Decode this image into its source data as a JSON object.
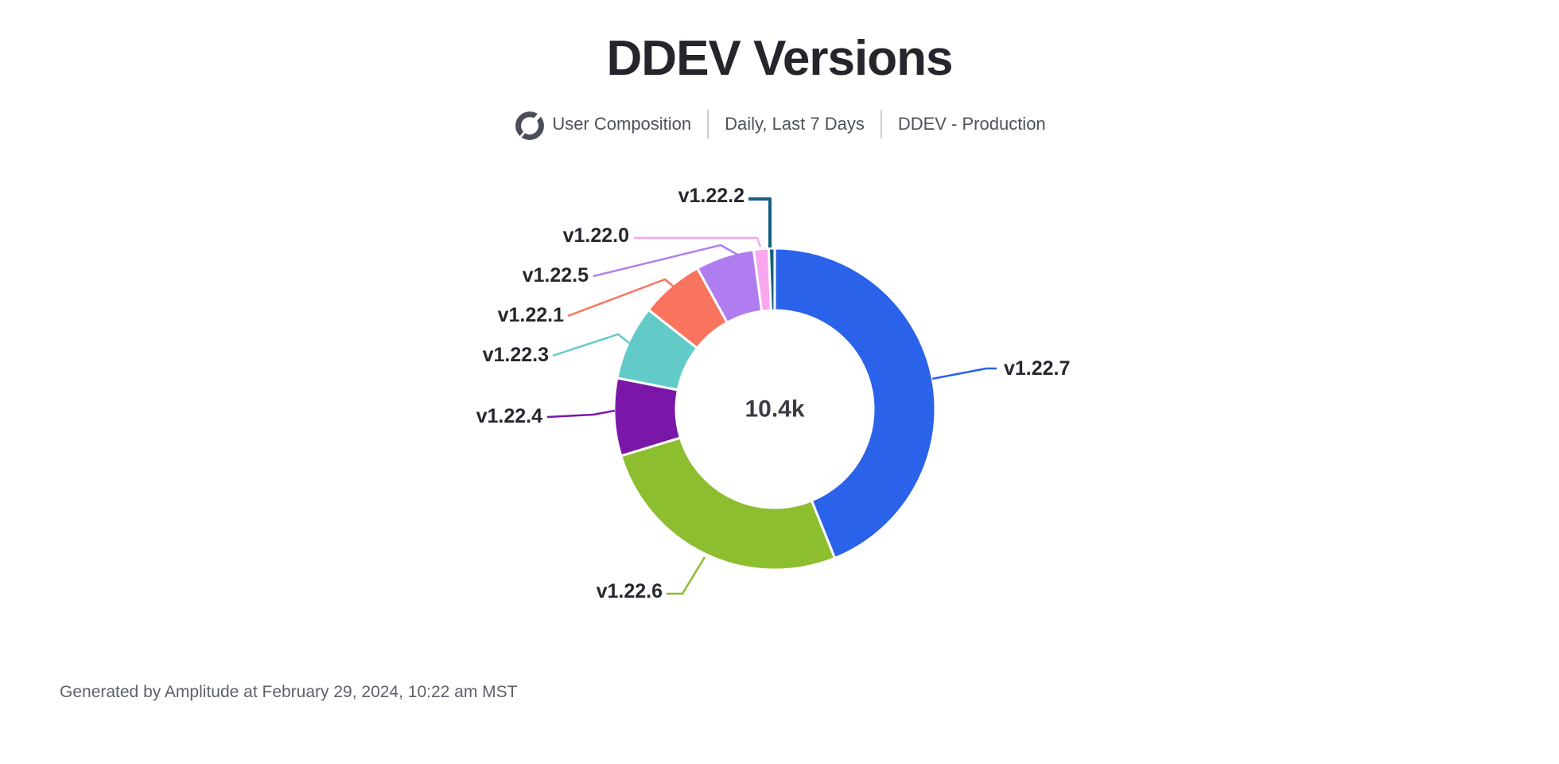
{
  "title": "DDEV Versions",
  "subtitle": {
    "icon": "donut-chart-icon",
    "metric": "User Composition",
    "range": "Daily, Last 7 Days",
    "source": "DDEV - Production"
  },
  "footer": "Generated by Amplitude at February 29, 2024, 10:22 am MST",
  "chart_data": {
    "type": "pie",
    "subtype": "donut",
    "title": "DDEV Versions",
    "center_total_label": "10.4k",
    "legend_position": "outside labels with leader lines",
    "values_estimated_from_arc_angles": true,
    "segments": [
      {
        "label": "v1.22.7",
        "share_pct": 43.9,
        "color": "#2a62e9"
      },
      {
        "label": "v1.22.6",
        "share_pct": 26.4,
        "color": "#8cbe2f"
      },
      {
        "label": "v1.22.4",
        "share_pct": 7.8,
        "color": "#7b17a8"
      },
      {
        "label": "v1.22.3",
        "share_pct": 7.5,
        "color": "#62cbc8"
      },
      {
        "label": "v1.22.1",
        "share_pct": 6.4,
        "color": "#f9745e"
      },
      {
        "label": "v1.22.5",
        "share_pct": 5.9,
        "color": "#af7df0"
      },
      {
        "label": "v1.22.0",
        "share_pct": 1.5,
        "color": "#f8a6ee"
      },
      {
        "label": "v1.22.2",
        "share_pct": 0.6,
        "color": "#17607f"
      }
    ]
  }
}
